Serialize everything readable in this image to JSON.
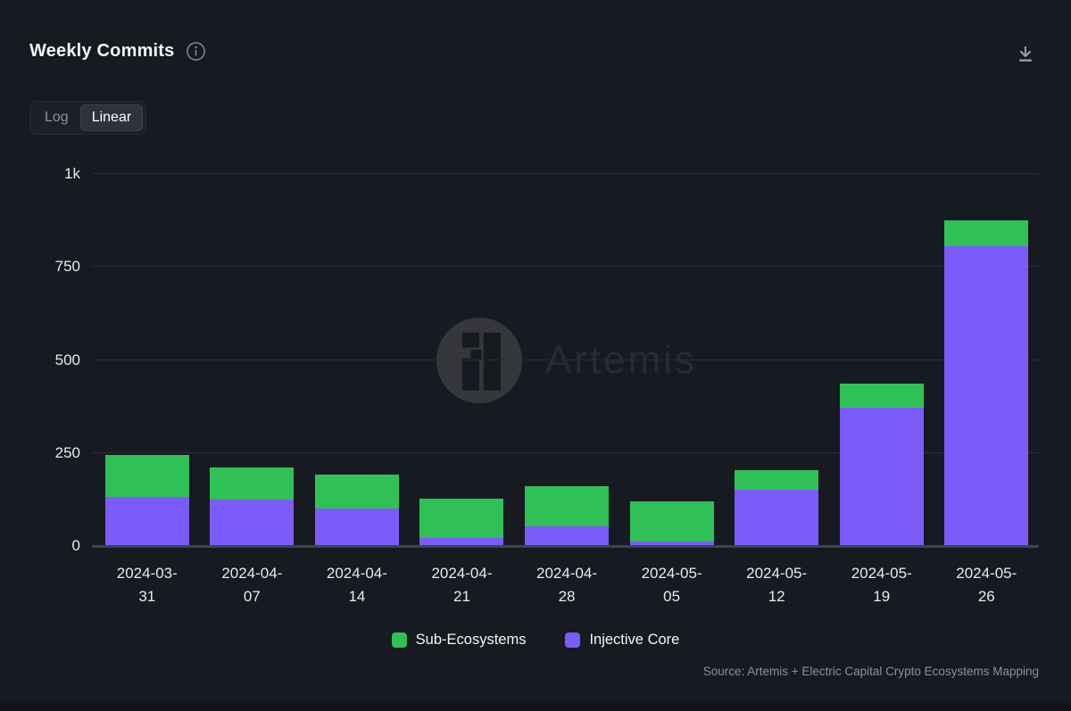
{
  "header": {
    "title": "Weekly Commits"
  },
  "scale_toggle": {
    "options": [
      {
        "label": "Log",
        "active": false
      },
      {
        "label": "Linear",
        "active": true
      }
    ]
  },
  "chart_data": {
    "type": "bar",
    "stacked": true,
    "title": "Weekly Commits",
    "xlabel": "",
    "ylabel": "",
    "ylim": [
      0,
      1000
    ],
    "grid": true,
    "legend_position": "bottom",
    "categories": [
      "2024-03-31",
      "2024-04-07",
      "2024-04-14",
      "2024-04-21",
      "2024-04-28",
      "2024-05-05",
      "2024-05-12",
      "2024-05-19",
      "2024-05-26"
    ],
    "series": [
      {
        "name": "Injective Core",
        "color": "#7b5cfa",
        "values": [
          133,
          124,
          100,
          21,
          52,
          11,
          152,
          372,
          805
        ]
      },
      {
        "name": "Sub-Ecosystems",
        "color": "#2fc156",
        "values": [
          112,
          86,
          92,
          106,
          108,
          110,
          52,
          65,
          70
        ]
      }
    ],
    "y_ticks": [
      {
        "value": 0,
        "label": "0"
      },
      {
        "value": 250,
        "label": "250"
      },
      {
        "value": 500,
        "label": "500"
      },
      {
        "value": 750,
        "label": "750"
      },
      {
        "value": 1000,
        "label": "1k"
      }
    ]
  },
  "legend": {
    "items": [
      {
        "label": "Sub-Ecosystems",
        "color": "#2fc156"
      },
      {
        "label": "Injective Core",
        "color": "#7b5cfa"
      }
    ]
  },
  "watermark": {
    "text": "Artemis"
  },
  "source": {
    "text": "Source: Artemis + Electric Capital Crypto Ecosystems Mapping"
  },
  "colors": {
    "background": "#171a21",
    "gridline": "#2a2d35",
    "axis": "#3f434c",
    "green": "#2fc156",
    "purple": "#7b5cfa"
  }
}
